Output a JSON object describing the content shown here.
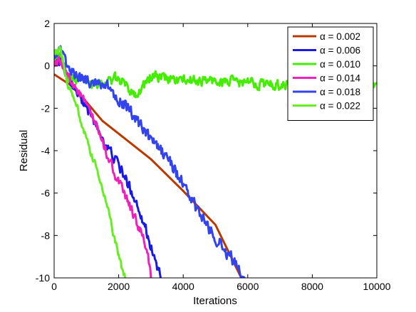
{
  "chart_data": {
    "type": "line",
    "xlabel": "Iterations",
    "ylabel": "Residual",
    "xlim": [
      0,
      10000
    ],
    "ylim": [
      -10,
      2
    ],
    "xticks": [
      0,
      2000,
      4000,
      6000,
      8000,
      10000
    ],
    "yticks": [
      2,
      0,
      -2,
      -4,
      -6,
      -8,
      -10
    ],
    "grid": false,
    "legend": "top-right",
    "series": [
      {
        "name": "α = 0.002",
        "color": "#B83A00",
        "noise": 0,
        "points": [
          [
            0,
            -0.4
          ],
          [
            500,
            -0.9
          ],
          [
            1000,
            -1.7
          ],
          [
            1500,
            -2.6
          ],
          [
            2000,
            -3.2
          ],
          [
            3000,
            -4.4
          ],
          [
            4000,
            -5.9
          ],
          [
            5000,
            -7.5
          ],
          [
            5800,
            -10
          ]
        ]
      },
      {
        "name": "α = 0.006",
        "color": "#1A1AE6",
        "noise": 0.22,
        "points": [
          [
            0,
            0.4
          ],
          [
            150,
            0.3
          ],
          [
            400,
            -0.4
          ],
          [
            800,
            -1.5
          ],
          [
            1200,
            -2.5
          ],
          [
            1600,
            -3.7
          ],
          [
            2000,
            -4.7
          ],
          [
            2400,
            -5.9
          ],
          [
            2700,
            -7.0
          ],
          [
            3000,
            -8.5
          ],
          [
            3300,
            -10
          ]
        ]
      },
      {
        "name": "α = 0.010",
        "color": "#44EE00",
        "noise": 0.22,
        "points": [
          [
            0,
            0.5
          ],
          [
            200,
            0.5
          ],
          [
            400,
            -0.5
          ],
          [
            600,
            -0.6
          ],
          [
            1000,
            -0.7
          ],
          [
            1500,
            -0.8
          ],
          [
            2000,
            -0.6
          ],
          [
            2400,
            -1.2
          ],
          [
            2600,
            -1.3
          ],
          [
            3000,
            -0.5
          ],
          [
            4000,
            -0.7
          ],
          [
            5000,
            -0.7
          ],
          [
            6000,
            -0.8
          ],
          [
            7000,
            -0.9
          ],
          [
            8000,
            -0.8
          ],
          [
            9000,
            -0.9
          ],
          [
            10000,
            -0.8
          ]
        ]
      },
      {
        "name": "α = 0.014",
        "color": "#EE22BB",
        "noise": 0.2,
        "points": [
          [
            0,
            0.2
          ],
          [
            200,
            0.1
          ],
          [
            500,
            -0.6
          ],
          [
            900,
            -1.6
          ],
          [
            1300,
            -2.8
          ],
          [
            1600,
            -4.0
          ],
          [
            2000,
            -5.5
          ],
          [
            2400,
            -6.8
          ],
          [
            2700,
            -7.9
          ],
          [
            2900,
            -8.8
          ],
          [
            3000,
            -10
          ]
        ]
      },
      {
        "name": "α = 0.018",
        "color": "#3344EE",
        "noise": 0.25,
        "points": [
          [
            0,
            0.6
          ],
          [
            200,
            0.6
          ],
          [
            500,
            -0.3
          ],
          [
            1000,
            -0.7
          ],
          [
            1500,
            -0.8
          ],
          [
            2000,
            -1.5
          ],
          [
            2500,
            -2.5
          ],
          [
            3000,
            -3.5
          ],
          [
            3500,
            -4.3
          ],
          [
            4000,
            -5.6
          ],
          [
            4500,
            -7.0
          ],
          [
            5000,
            -8.1
          ],
          [
            5500,
            -9.1
          ],
          [
            5900,
            -10
          ]
        ]
      },
      {
        "name": "α = 0.022",
        "color": "#66EE22",
        "noise": 0.15,
        "points": [
          [
            0,
            0.7
          ],
          [
            200,
            0.7
          ],
          [
            400,
            -0.7
          ],
          [
            700,
            -1.9
          ],
          [
            1000,
            -3.5
          ],
          [
            1200,
            -4.4
          ],
          [
            1400,
            -5.2
          ],
          [
            1700,
            -7.0
          ],
          [
            2000,
            -9.0
          ],
          [
            2200,
            -10
          ]
        ]
      }
    ]
  }
}
